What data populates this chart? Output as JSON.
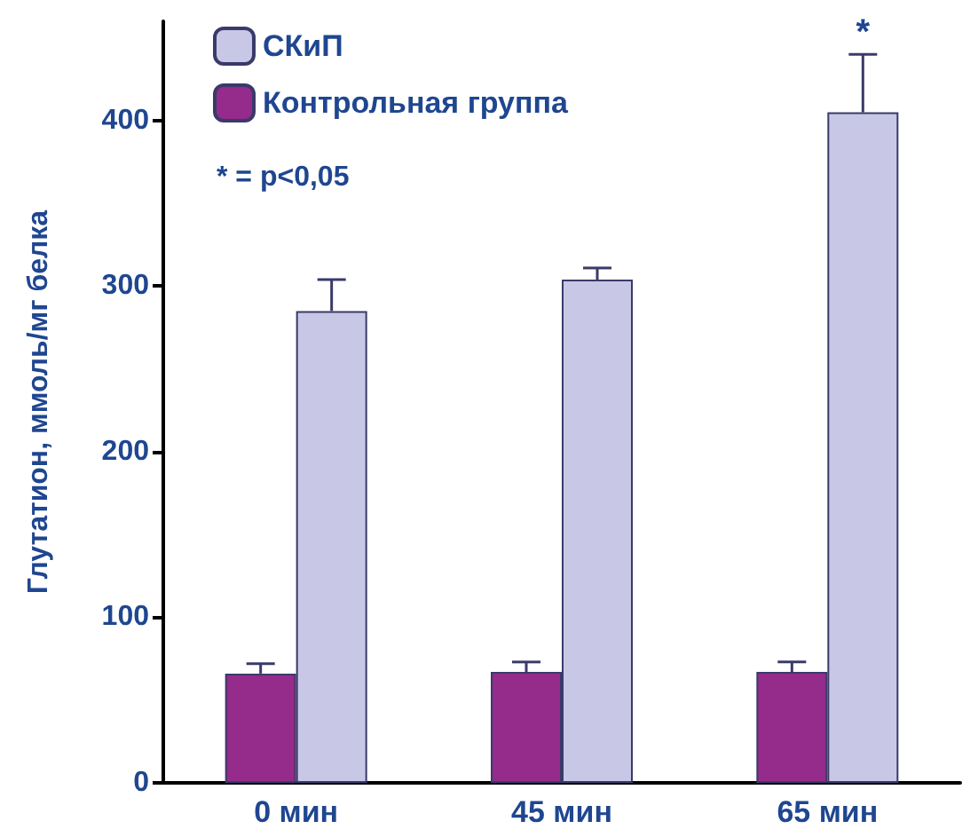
{
  "chart_data": {
    "type": "bar",
    "ylabel": "Глутатион, ммоль/мг белка",
    "categories": [
      "0 мин",
      "45 мин",
      "65 мин"
    ],
    "series": [
      {
        "name": "Контрольная группа",
        "color": "#952b8a",
        "values": [
          66,
          67,
          67
        ],
        "errors": [
          [
            66,
            72
          ],
          [
            67,
            73
          ],
          [
            67,
            73
          ]
        ]
      },
      {
        "name": "СКиП",
        "color": "#c8c8e6",
        "values": [
          285,
          304,
          405
        ],
        "errors": [
          [
            285,
            304
          ],
          [
            304,
            311
          ],
          [
            405,
            440
          ]
        ]
      }
    ],
    "ylim": [
      0,
      460
    ],
    "yticks": [
      0,
      100,
      200,
      300,
      400
    ],
    "grid": false,
    "legend": "top left",
    "annotations": [
      "*",
      "* = p<0,05"
    ]
  }
}
